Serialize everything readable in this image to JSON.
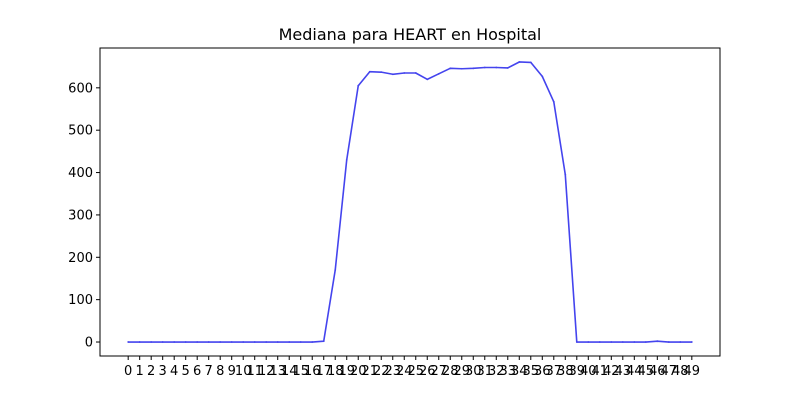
{
  "chart_data": {
    "type": "line",
    "title": "Mediana para HEART en Hospital",
    "xlabel": "",
    "ylabel": "",
    "x": [
      0,
      1,
      2,
      3,
      4,
      5,
      6,
      7,
      8,
      9,
      10,
      11,
      12,
      13,
      14,
      15,
      16,
      17,
      18,
      19,
      20,
      21,
      22,
      23,
      24,
      25,
      26,
      27,
      28,
      29,
      30,
      31,
      32,
      33,
      34,
      35,
      36,
      37,
      38,
      39,
      40,
      41,
      42,
      43,
      44,
      45,
      46,
      47,
      48,
      49
    ],
    "xticks": [
      "0",
      "1",
      "2",
      "3",
      "4",
      "5",
      "6",
      "7",
      "8",
      "9",
      "10",
      "11",
      "12",
      "13",
      "14",
      "15",
      "16",
      "17",
      "18",
      "19",
      "20",
      "21",
      "22",
      "23",
      "24",
      "25",
      "26",
      "27",
      "28",
      "29",
      "30",
      "31",
      "32",
      "33",
      "34",
      "35",
      "36",
      "37",
      "38",
      "39",
      "40",
      "41",
      "42",
      "43",
      "44",
      "45",
      "46",
      "47",
      "48",
      "49"
    ],
    "xlim": [
      -2.45,
      51.45
    ],
    "yticks": [
      0,
      100,
      200,
      300,
      400,
      500,
      600
    ],
    "ylim": [
      -33,
      694
    ],
    "grid": false,
    "series": [
      {
        "color": "#4444ee",
        "values": [
          0,
          0,
          0,
          0,
          0,
          0,
          0,
          0,
          0,
          0,
          0,
          0,
          0,
          0,
          0,
          0,
          0,
          2,
          170,
          430,
          605,
          638,
          637,
          632,
          635,
          635,
          620,
          633,
          646,
          645,
          646,
          648,
          648,
          647,
          661,
          660,
          627,
          567,
          395,
          0,
          0,
          0,
          0,
          0,
          0,
          0,
          2,
          0,
          0,
          0
        ]
      }
    ]
  }
}
